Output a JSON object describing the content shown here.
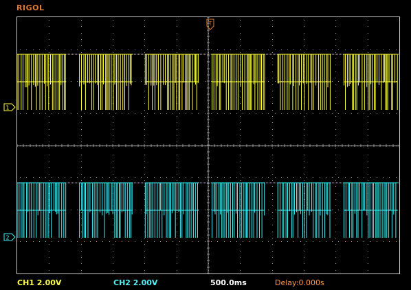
{
  "brand": "RIGOL",
  "colors": {
    "ch1": "#ffff3a",
    "ch2": "#3ff0f4",
    "grid": "#9a9a9a",
    "brand": "#e07a2a",
    "delay": "#ff9a4a"
  },
  "status": {
    "ch1_label": "CH1",
    "ch1_scale": "2.00V",
    "ch2_label": "CH2",
    "ch2_scale": "2.00V",
    "timebase": "500.0ms",
    "delay": "Delay:0.000s"
  },
  "markers": {
    "ch1": "1",
    "ch2": "2",
    "trigger": "T"
  },
  "waveform": {
    "bursts": [
      {
        "start": 0.0,
        "end": 0.128
      },
      {
        "start": 0.163,
        "end": 0.302
      },
      {
        "start": 0.335,
        "end": 0.475
      },
      {
        "start": 0.51,
        "end": 0.648
      },
      {
        "start": 0.682,
        "end": 0.822
      },
      {
        "start": 0.855,
        "end": 0.996
      }
    ]
  }
}
